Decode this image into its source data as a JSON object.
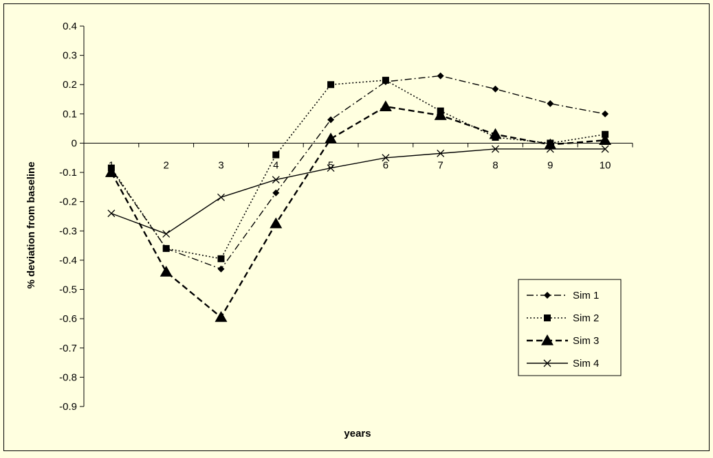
{
  "chart_data": {
    "type": "line",
    "xlabel": "years",
    "ylabel": "% deviation from baseline",
    "x": [
      1,
      2,
      3,
      4,
      5,
      6,
      7,
      8,
      9,
      10
    ],
    "x_tick_labels": [
      "1",
      "2",
      "3",
      "4",
      "5",
      "6",
      "7",
      "8",
      "9",
      "10"
    ],
    "ylim": [
      -0.9,
      0.4
    ],
    "y_ticks": [
      0.4,
      0.3,
      0.2,
      0.1,
      0,
      -0.1,
      -0.2,
      -0.3,
      -0.4,
      -0.5,
      -0.6,
      -0.7,
      -0.8,
      -0.9
    ],
    "y_tick_labels": [
      "0.4",
      "0.3",
      "0.2",
      "0.1",
      "0",
      "-0.1",
      "-0.2",
      "-0.3",
      "-0.4",
      "-0.5",
      "-0.6",
      "-0.7",
      "-0.8",
      "-0.9"
    ],
    "grid": false,
    "legend_position": "right",
    "series": [
      {
        "name": "Sim 1",
        "marker": "diamond",
        "dash": "dash-dot",
        "values": [
          -0.09,
          -0.36,
          -0.43,
          -0.17,
          0.08,
          0.21,
          0.23,
          0.185,
          0.135,
          0.1
        ]
      },
      {
        "name": "Sim 2",
        "marker": "square",
        "dash": "dotted",
        "values": [
          -0.085,
          -0.36,
          -0.395,
          -0.04,
          0.2,
          0.215,
          0.11,
          0.02,
          0.0,
          0.03
        ]
      },
      {
        "name": "Sim 3",
        "marker": "triangle",
        "dash": "long-dash",
        "values": [
          -0.1,
          -0.44,
          -0.595,
          -0.275,
          0.015,
          0.125,
          0.095,
          0.03,
          -0.005,
          0.01
        ]
      },
      {
        "name": "Sim 4",
        "marker": "x",
        "dash": "solid",
        "values": [
          -0.24,
          -0.31,
          -0.185,
          -0.125,
          -0.085,
          -0.05,
          -0.035,
          -0.02,
          -0.02,
          -0.02
        ]
      }
    ],
    "colors": {
      "background": "#ffffe0",
      "line": "#000000"
    }
  }
}
